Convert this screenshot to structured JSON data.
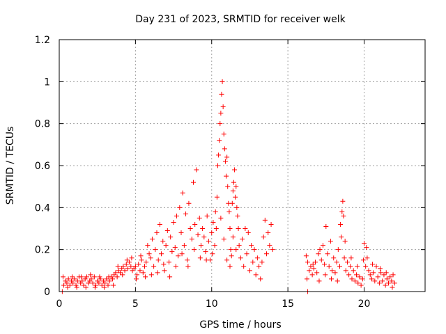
{
  "chart_data": {
    "type": "scatter",
    "title": "Day 231 of 2023, SRMTID for receiver welk",
    "xlabel": "GPS time / hours",
    "ylabel": "SRMTID / TECUs",
    "xlim": [
      0,
      24
    ],
    "ylim": [
      0,
      1.2
    ],
    "x_ticks": [
      0,
      5,
      10,
      15,
      20
    ],
    "x_tick_labels": [
      "0",
      "5",
      "10",
      "15",
      "20"
    ],
    "y_ticks": [
      0,
      0.2,
      0.4,
      0.6,
      0.8,
      1.0,
      1.2
    ],
    "y_tick_labels": [
      "0",
      "0.2",
      "0.4",
      "0.6",
      "0.8",
      "1",
      "1.2"
    ],
    "grid": true,
    "marker": "plus",
    "marker_color": "#ff0000",
    "series": [
      {
        "name": "SRMTID",
        "points": [
          [
            0.2,
            0.0
          ],
          [
            16.3,
            0.0
          ],
          [
            0.3,
            0.03
          ],
          [
            0.4,
            0.05
          ],
          [
            0.5,
            0.04
          ],
          [
            0.6,
            0.06
          ],
          [
            0.7,
            0.03
          ],
          [
            0.8,
            0.05
          ],
          [
            0.9,
            0.04
          ],
          [
            1.0,
            0.06
          ],
          [
            1.1,
            0.03
          ],
          [
            1.2,
            0.05
          ],
          [
            1.3,
            0.07
          ],
          [
            1.4,
            0.04
          ],
          [
            1.5,
            0.05
          ],
          [
            1.6,
            0.03
          ],
          [
            1.7,
            0.06
          ],
          [
            1.8,
            0.07
          ],
          [
            1.9,
            0.04
          ],
          [
            2.0,
            0.05
          ],
          [
            2.1,
            0.06
          ],
          [
            2.2,
            0.04
          ],
          [
            2.3,
            0.07
          ],
          [
            2.4,
            0.03
          ],
          [
            2.5,
            0.05
          ],
          [
            2.6,
            0.04
          ],
          [
            2.7,
            0.06
          ],
          [
            2.8,
            0.03
          ],
          [
            2.9,
            0.05
          ],
          [
            3.0,
            0.04
          ],
          [
            3.1,
            0.06
          ],
          [
            3.2,
            0.03
          ],
          [
            3.3,
            0.05
          ],
          [
            3.4,
            0.07
          ],
          [
            3.5,
            0.06
          ],
          [
            3.6,
            0.08
          ],
          [
            3.7,
            0.09
          ],
          [
            3.8,
            0.07
          ],
          [
            3.9,
            0.1
          ],
          [
            4.0,
            0.09
          ],
          [
            4.1,
            0.11
          ],
          [
            4.2,
            0.12
          ],
          [
            4.3,
            0.1
          ],
          [
            4.4,
            0.13
          ],
          [
            4.5,
            0.11
          ],
          [
            4.6,
            0.14
          ],
          [
            4.7,
            0.12
          ],
          [
            4.8,
            0.1
          ],
          [
            4.9,
            0.11
          ],
          [
            5.0,
            0.12
          ],
          [
            5.1,
            0.08
          ],
          [
            5.2,
            0.13
          ],
          [
            5.3,
            0.1
          ],
          [
            5.4,
            0.15
          ],
          [
            5.5,
            0.09
          ],
          [
            5.6,
            0.12
          ],
          [
            5.7,
            0.14
          ],
          [
            0.25,
            0.07
          ],
          [
            0.55,
            0.02
          ],
          [
            0.85,
            0.07
          ],
          [
            1.15,
            0.02
          ],
          [
            1.45,
            0.07
          ],
          [
            1.75,
            0.02
          ],
          [
            2.05,
            0.08
          ],
          [
            2.35,
            0.02
          ],
          [
            2.65,
            0.07
          ],
          [
            2.95,
            0.02
          ],
          [
            3.25,
            0.07
          ],
          [
            3.55,
            0.03
          ],
          [
            3.85,
            0.12
          ],
          [
            4.15,
            0.08
          ],
          [
            4.45,
            0.15
          ],
          [
            4.75,
            0.16
          ],
          [
            5.05,
            0.06
          ],
          [
            5.35,
            0.17
          ],
          [
            5.65,
            0.07
          ],
          [
            5.8,
            0.22
          ],
          [
            5.9,
            0.18
          ],
          [
            6.0,
            0.16
          ],
          [
            6.1,
            0.25
          ],
          [
            6.2,
            0.12
          ],
          [
            6.3,
            0.2
          ],
          [
            6.4,
            0.28
          ],
          [
            6.5,
            0.15
          ],
          [
            6.6,
            0.32
          ],
          [
            6.7,
            0.18
          ],
          [
            6.8,
            0.24
          ],
          [
            6.9,
            0.1
          ],
          [
            7.0,
            0.22
          ],
          [
            7.1,
            0.29
          ],
          [
            7.2,
            0.14
          ],
          [
            7.3,
            0.26
          ],
          [
            7.4,
            0.19
          ],
          [
            7.5,
            0.33
          ],
          [
            7.6,
            0.21
          ],
          [
            7.7,
            0.36
          ],
          [
            7.8,
            0.17
          ],
          [
            7.9,
            0.4
          ],
          [
            8.0,
            0.28
          ],
          [
            8.1,
            0.47
          ],
          [
            8.2,
            0.22
          ],
          [
            8.3,
            0.37
          ],
          [
            8.4,
            0.15
          ],
          [
            8.5,
            0.42
          ],
          [
            8.6,
            0.3
          ],
          [
            8.7,
            0.25
          ],
          [
            8.8,
            0.52
          ],
          [
            8.9,
            0.32
          ],
          [
            9.0,
            0.58
          ],
          [
            9.1,
            0.27
          ],
          [
            9.2,
            0.35
          ],
          [
            9.3,
            0.22
          ],
          [
            9.4,
            0.3
          ],
          [
            9.5,
            0.26
          ],
          [
            9.6,
            0.19
          ],
          [
            9.7,
            0.36
          ],
          [
            9.8,
            0.24
          ],
          [
            9.9,
            0.15
          ],
          [
            10.0,
            0.28
          ],
          [
            10.1,
            0.33
          ],
          [
            10.2,
            0.22
          ],
          [
            10.3,
            0.3
          ],
          [
            6.05,
            0.08
          ],
          [
            6.45,
            0.09
          ],
          [
            6.85,
            0.13
          ],
          [
            7.25,
            0.07
          ],
          [
            7.65,
            0.12
          ],
          [
            8.05,
            0.18
          ],
          [
            8.45,
            0.12
          ],
          [
            8.85,
            0.2
          ],
          [
            9.25,
            0.16
          ],
          [
            9.65,
            0.15
          ],
          [
            10.05,
            0.18
          ],
          [
            10.25,
            0.38
          ],
          [
            10.35,
            0.45
          ],
          [
            10.4,
            0.6
          ],
          [
            10.45,
            0.65
          ],
          [
            10.5,
            0.72
          ],
          [
            10.55,
            0.8
          ],
          [
            10.6,
            0.85
          ],
          [
            10.65,
            0.94
          ],
          [
            10.7,
            1.0
          ],
          [
            10.75,
            0.88
          ],
          [
            10.8,
            0.75
          ],
          [
            10.85,
            0.68
          ],
          [
            10.9,
            0.62
          ],
          [
            10.95,
            0.55
          ],
          [
            11.0,
            0.64
          ],
          [
            11.05,
            0.5
          ],
          [
            11.1,
            0.42
          ],
          [
            11.15,
            0.38
          ],
          [
            11.2,
            0.3
          ],
          [
            11.25,
            0.2
          ],
          [
            11.3,
            0.17
          ],
          [
            11.35,
            0.42
          ],
          [
            11.4,
            0.48
          ],
          [
            11.45,
            0.52
          ],
          [
            11.5,
            0.58
          ],
          [
            11.55,
            0.45
          ],
          [
            11.6,
            0.5
          ],
          [
            11.65,
            0.4
          ],
          [
            11.7,
            0.36
          ],
          [
            11.75,
            0.3
          ],
          [
            11.8,
            0.22
          ],
          [
            10.6,
            0.35
          ],
          [
            10.8,
            0.25
          ],
          [
            11.0,
            0.15
          ],
          [
            11.2,
            0.12
          ],
          [
            11.4,
            0.26
          ],
          [
            11.6,
            0.2
          ],
          [
            11.9,
            0.16
          ],
          [
            12.0,
            0.25
          ],
          [
            12.1,
            0.12
          ],
          [
            12.2,
            0.3
          ],
          [
            12.3,
            0.18
          ],
          [
            12.4,
            0.28
          ],
          [
            12.5,
            0.1
          ],
          [
            12.6,
            0.22
          ],
          [
            12.7,
            0.14
          ],
          [
            12.8,
            0.2
          ],
          [
            12.9,
            0.08
          ],
          [
            13.0,
            0.16
          ],
          [
            13.1,
            0.12
          ],
          [
            13.2,
            0.06
          ],
          [
            13.3,
            0.14
          ],
          [
            13.4,
            0.26
          ],
          [
            13.5,
            0.34
          ],
          [
            13.6,
            0.18
          ],
          [
            13.7,
            0.28
          ],
          [
            13.8,
            0.22
          ],
          [
            13.9,
            0.32
          ],
          [
            14.0,
            0.2
          ],
          [
            16.2,
            0.17
          ],
          [
            16.3,
            0.14
          ],
          [
            16.4,
            0.1
          ],
          [
            16.5,
            0.12
          ],
          [
            16.6,
            0.08
          ],
          [
            16.7,
            0.11
          ],
          [
            16.8,
            0.14
          ],
          [
            16.9,
            0.09
          ],
          [
            17.0,
            0.18
          ],
          [
            17.1,
            0.2
          ],
          [
            17.2,
            0.15
          ],
          [
            17.3,
            0.22
          ],
          [
            17.4,
            0.13
          ],
          [
            17.5,
            0.31
          ],
          [
            17.6,
            0.18
          ],
          [
            17.7,
            0.12
          ],
          [
            17.8,
            0.24
          ],
          [
            17.9,
            0.1
          ],
          [
            18.0,
            0.16
          ],
          [
            18.1,
            0.09
          ],
          [
            18.2,
            0.14
          ],
          [
            18.3,
            0.2
          ],
          [
            18.4,
            0.12
          ],
          [
            18.5,
            0.26
          ],
          [
            18.55,
            0.38
          ],
          [
            18.6,
            0.43
          ],
          [
            18.65,
            0.36
          ],
          [
            18.7,
            0.16
          ],
          [
            18.8,
            0.1
          ],
          [
            18.9,
            0.14
          ],
          [
            19.0,
            0.08
          ],
          [
            19.1,
            0.12
          ],
          [
            19.2,
            0.06
          ],
          [
            19.3,
            0.1
          ],
          [
            19.4,
            0.05
          ],
          [
            19.5,
            0.08
          ],
          [
            19.6,
            0.04
          ],
          [
            19.7,
            0.07
          ],
          [
            19.8,
            0.03
          ],
          [
            19.9,
            0.06
          ],
          [
            20.0,
            0.23
          ],
          [
            20.1,
            0.12
          ],
          [
            20.2,
            0.16
          ],
          [
            20.3,
            0.1
          ],
          [
            20.4,
            0.08
          ],
          [
            20.5,
            0.06
          ],
          [
            20.6,
            0.09
          ],
          [
            20.7,
            0.05
          ],
          [
            20.8,
            0.12
          ],
          [
            20.9,
            0.07
          ],
          [
            21.0,
            0.04
          ],
          [
            21.1,
            0.09
          ],
          [
            21.2,
            0.05
          ],
          [
            21.3,
            0.08
          ],
          [
            21.4,
            0.03
          ],
          [
            21.5,
            0.06
          ],
          [
            21.6,
            0.04
          ],
          [
            21.7,
            0.07
          ],
          [
            21.8,
            0.05
          ],
          [
            21.9,
            0.08
          ],
          [
            22.0,
            0.04
          ],
          [
            16.25,
            0.06
          ],
          [
            16.65,
            0.13
          ],
          [
            17.05,
            0.05
          ],
          [
            17.45,
            0.08
          ],
          [
            17.85,
            0.06
          ],
          [
            18.25,
            0.05
          ],
          [
            18.45,
            0.32
          ],
          [
            18.75,
            0.24
          ],
          [
            19.15,
            0.16
          ],
          [
            19.55,
            0.12
          ],
          [
            19.95,
            0.15
          ],
          [
            20.15,
            0.21
          ],
          [
            20.55,
            0.13
          ],
          [
            21.05,
            0.11
          ],
          [
            21.45,
            0.09
          ],
          [
            21.85,
            0.02
          ]
        ]
      }
    ]
  }
}
